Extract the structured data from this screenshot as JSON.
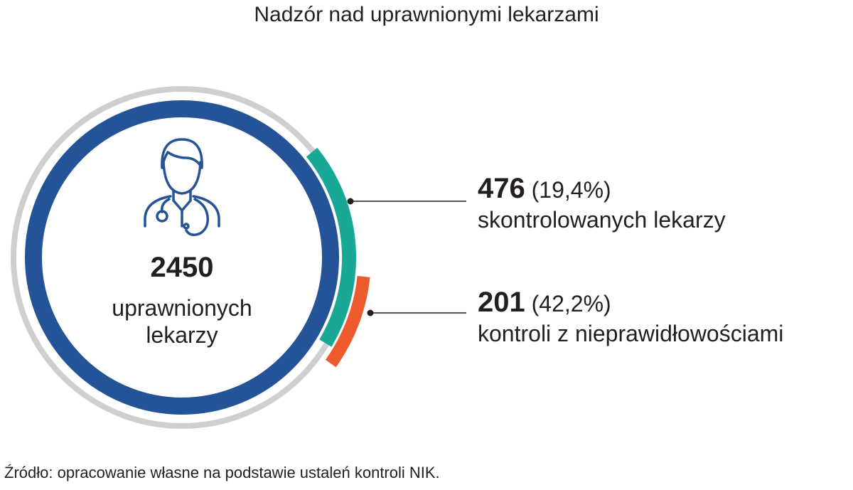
{
  "title": "Nadzór nad uprawnionymi lekarzami",
  "center": {
    "value": "2450",
    "label_line1": "uprawnionych",
    "label_line2": "lekarzy",
    "icon": "doctor-icon"
  },
  "callouts": [
    {
      "value": "476",
      "percent": "(19,4%)",
      "label": "skontrolowanych lekarzy"
    },
    {
      "value": "201",
      "percent": "(42,2%)",
      "label": "kontroli z nieprawidłowościami"
    }
  ],
  "source": "Źródło: opracowanie własne na podstawie ustaleń kontroli NIK.",
  "colors": {
    "main_ring": "#245398",
    "outer_ring": "#cfcfcf",
    "teal_arc": "#1aa896",
    "orange_arc": "#ec5a2e",
    "text": "#231f20"
  },
  "chart_data": {
    "type": "pie",
    "title": "Nadzór nad uprawnionymi lekarzami",
    "total": {
      "value": 2450,
      "label": "uprawnionych lekarzy"
    },
    "segments": [
      {
        "name": "skontrolowanych lekarzy",
        "value": 476,
        "percent": 19.4,
        "of": "uprawnionych lekarzy"
      },
      {
        "name": "kontroli z nieprawidłowościami",
        "value": 201,
        "percent": 42.2,
        "of": "skontrolowanych lekarzy"
      }
    ]
  }
}
